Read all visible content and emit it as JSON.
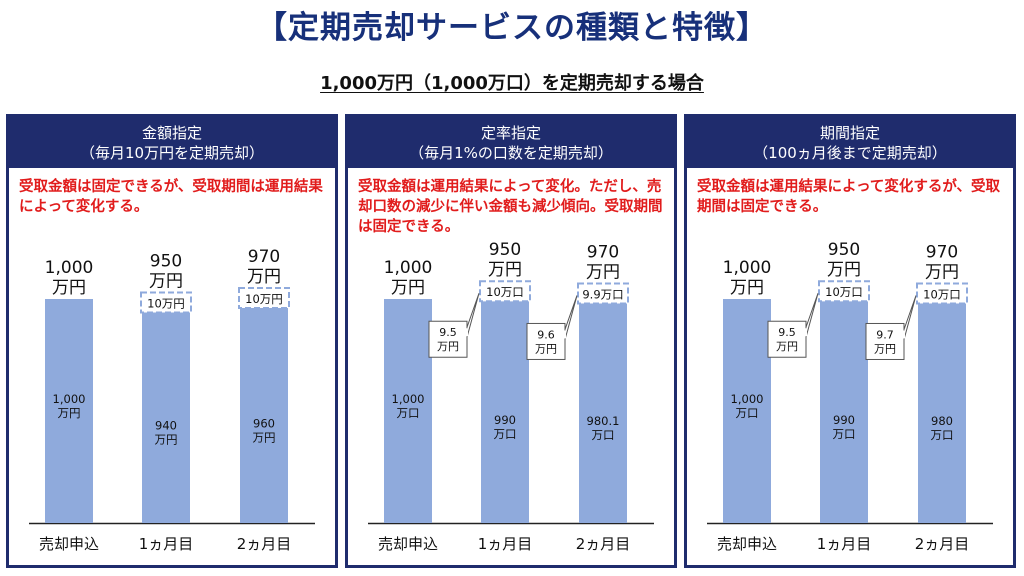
{
  "page": {
    "title": "【定期売却サービスの種類と特徴】",
    "subtitle": "1,000万円（1,000万口）を定期売却する場合"
  },
  "colors": {
    "title": "#17307a",
    "panel_header_bg": "#1f2c6d",
    "bar": "#8faadc",
    "description": "#e11c1c",
    "dashed_box": "#8faadc"
  },
  "panels": [
    {
      "header_line1": "金額指定",
      "header_line2": "（毎月10万円を定期売却）",
      "description": "受取金額は固定できるが、受取期間は運用結果によって変化する。"
    },
    {
      "header_line1": "定率指定",
      "header_line2": "（毎月1%の口数を定期売却）",
      "description": "受取金額は運用結果によって変化。ただし、売却口数の減少に伴い金額も減少傾向。受取期間は固定できる。"
    },
    {
      "header_line1": "期間指定",
      "header_line2": "（100ヵ月後まで定期売却）",
      "description": "受取金額は運用結果によって変化するが、受取期間は固定できる。"
    }
  ],
  "chart_data": [
    {
      "type": "bar",
      "categories": [
        "売却申込",
        "1ヵ月目",
        "2ヵ月目"
      ],
      "totals": [
        1000,
        950,
        970
      ],
      "total_labels": [
        "1,000\n万円",
        "950\n万円",
        "970\n万円"
      ],
      "remaining_values": [
        1000,
        940,
        960
      ],
      "remaining_labels": [
        "1,000\n万円",
        "940\n万円",
        "960\n万円"
      ],
      "sold_labels": [
        "",
        "10万円",
        "10万円"
      ],
      "proceeds_labels": [
        "",
        "",
        ""
      ],
      "unit": "万円"
    },
    {
      "type": "bar",
      "categories": [
        "売却申込",
        "1ヵ月目",
        "2ヵ月目"
      ],
      "totals": [
        1000,
        950,
        970
      ],
      "total_labels": [
        "1,000\n万円",
        "950\n万円",
        "970\n万円"
      ],
      "remaining_values": [
        1000,
        990,
        980.1
      ],
      "remaining_labels": [
        "1,000\n万口",
        "990\n万口",
        "980.1\n万口"
      ],
      "sold_labels": [
        "",
        "10万口",
        "9.9万口"
      ],
      "proceeds_labels": [
        "",
        "9.5\n万円",
        "9.6\n万円"
      ],
      "unit": "万口"
    },
    {
      "type": "bar",
      "categories": [
        "売却申込",
        "1ヵ月目",
        "2ヵ月目"
      ],
      "totals": [
        1000,
        950,
        970
      ],
      "total_labels": [
        "1,000\n万円",
        "950\n万円",
        "970\n万円"
      ],
      "remaining_values": [
        1000,
        990,
        980
      ],
      "remaining_labels": [
        "1,000\n万口",
        "990\n万口",
        "980\n万口"
      ],
      "sold_labels": [
        "",
        "10万口",
        "10万口"
      ],
      "proceeds_labels": [
        "",
        "9.5\n万円",
        "9.7\n万円"
      ],
      "unit": "万口"
    }
  ]
}
